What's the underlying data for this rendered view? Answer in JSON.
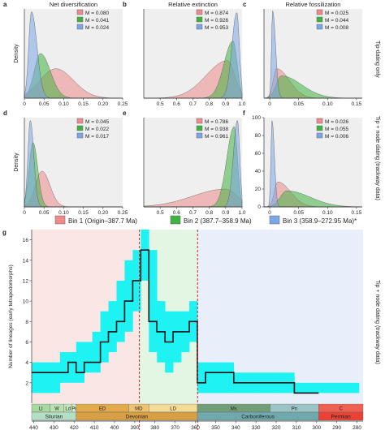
{
  "colors": {
    "bin1": "#ef8a8a",
    "bin2": "#41b341",
    "bin3": "#7aa6e6",
    "bin1_bg": "#fbe6e6",
    "bin2_bg": "#e3f5e3",
    "bin3_bg": "#e8effb",
    "band": "#1ff2f2",
    "panel_bg": "#efefef",
    "divider": "#c0262e"
  },
  "legend": {
    "bin1": "Bin 1 (Origin–387.7 Ma)",
    "bin2": "Bin 2 (387.7–358.9 Ma)",
    "bin3": "Bin 3 (358.9–272.95 Ma)*"
  },
  "row_labels": {
    "top": "Tip-dating only",
    "middle": "Tip + node dating (trackway data)",
    "bottom": "Tip + node dating (trackway data)"
  },
  "chart_data": [
    {
      "type": "area",
      "panel": "a",
      "title": "Net diversification",
      "ylabel": "Density",
      "xlim": [
        0,
        0.25
      ],
      "xticks": [
        0,
        0.05,
        0.1,
        0.15,
        0.2,
        0.25
      ],
      "xtick_labels": [
        "0",
        "0.05",
        "0.10",
        "0.15",
        "0.20",
        "0.25"
      ],
      "ylim": [
        0,
        1
      ],
      "yticks": [],
      "series": [
        {
          "name": "M = 0.080",
          "bin": "bin1",
          "peak": 0.08,
          "sd_left": 0.04,
          "sd_right": 0.045,
          "height": 0.33
        },
        {
          "name": "M = 0.041",
          "bin": "bin2",
          "peak": 0.041,
          "sd_left": 0.016,
          "sd_right": 0.025,
          "height": 0.5
        },
        {
          "name": "M = 0.024",
          "bin": "bin3",
          "peak": 0.018,
          "sd_left": 0.007,
          "sd_right": 0.014,
          "height": 0.97
        }
      ]
    },
    {
      "type": "area",
      "panel": "b",
      "title": "Relative extinction",
      "xlim": [
        0.4,
        1.0
      ],
      "xticks": [
        0.5,
        0.6,
        0.7,
        0.8,
        0.9,
        1.0
      ],
      "xtick_labels": [
        "0.5",
        "0.6",
        "0.7",
        "0.8",
        "0.9",
        "1.0"
      ],
      "ylim": [
        0,
        1
      ],
      "yticks": [],
      "series": [
        {
          "name": "M = 0.874",
          "bin": "bin1",
          "peak": 0.91,
          "sd_left": 0.13,
          "sd_right": 0.045,
          "height": 0.42
        },
        {
          "name": "M = 0.926",
          "bin": "bin2",
          "peak": 0.945,
          "sd_left": 0.055,
          "sd_right": 0.025,
          "height": 0.64
        },
        {
          "name": "M = 0.953",
          "bin": "bin3",
          "peak": 0.968,
          "sd_left": 0.03,
          "sd_right": 0.016,
          "height": 0.96
        }
      ]
    },
    {
      "type": "area",
      "panel": "c",
      "title": "Relative fossilization",
      "xlim": [
        -0.01,
        0.16
      ],
      "xticks": [
        0,
        0.05,
        0.1,
        0.15
      ],
      "xtick_labels": [
        "0",
        "0.05",
        "0.10",
        "0.15"
      ],
      "ylim": [
        0,
        1
      ],
      "yticks": [],
      "series": [
        {
          "name": "M = 0.025",
          "bin": "bin1",
          "peak": 0.012,
          "sd_left": 0.006,
          "sd_right": 0.022,
          "height": 0.33
        },
        {
          "name": "M = 0.044",
          "bin": "bin2",
          "peak": 0.02,
          "sd_left": 0.009,
          "sd_right": 0.035,
          "height": 0.25
        },
        {
          "name": "M = 0.008",
          "bin": "bin3",
          "peak": 0.005,
          "sd_left": 0.002,
          "sd_right": 0.005,
          "height": 0.98
        }
      ]
    },
    {
      "type": "area",
      "panel": "d",
      "ylabel": "Density",
      "xlim": [
        0,
        0.25
      ],
      "xticks": [
        0,
        0.05,
        0.1,
        0.15,
        0.2,
        0.25
      ],
      "xtick_labels": [
        "0",
        "0.05",
        "0.10",
        "0.15",
        "0.20",
        "0.25"
      ],
      "ylim": [
        0,
        1
      ],
      "yticks": [],
      "series": [
        {
          "name": "M = 0.045",
          "bin": "bin1",
          "peak": 0.045,
          "sd_left": 0.017,
          "sd_right": 0.02,
          "height": 0.4
        },
        {
          "name": "M = 0.022",
          "bin": "bin2",
          "peak": 0.022,
          "sd_left": 0.01,
          "sd_right": 0.012,
          "height": 0.72
        },
        {
          "name": "M = 0.017",
          "bin": "bin3",
          "peak": 0.015,
          "sd_left": 0.006,
          "sd_right": 0.009,
          "height": 0.97
        }
      ]
    },
    {
      "type": "area",
      "panel": "e",
      "xlim": [
        0.4,
        1.0
      ],
      "xticks": [
        0.5,
        0.6,
        0.7,
        0.8,
        0.9,
        1.0
      ],
      "xtick_labels": [
        "0.5",
        "0.6",
        "0.7",
        "0.8",
        "0.9",
        "1.0"
      ],
      "ylim": [
        0,
        1
      ],
      "yticks": [],
      "series": [
        {
          "name": "M = 0.786",
          "bin": "bin1",
          "peak": 0.9,
          "sd_left": 0.2,
          "sd_right": 0.07,
          "height": 0.2
        },
        {
          "name": "M = 0.938",
          "bin": "bin2",
          "peak": 0.952,
          "sd_left": 0.045,
          "sd_right": 0.02,
          "height": 0.9
        },
        {
          "name": "M = 0.961",
          "bin": "bin3",
          "peak": 0.972,
          "sd_left": 0.025,
          "sd_right": 0.014,
          "height": 0.97
        }
      ]
    },
    {
      "type": "area",
      "panel": "f",
      "xlim": [
        -0.01,
        0.16
      ],
      "xticks": [
        0,
        0.05,
        0.1,
        0.15
      ],
      "xtick_labels": [
        "0",
        "0.05",
        "0.10",
        "0.15"
      ],
      "ylim": [
        0,
        100
      ],
      "yticks": [
        0,
        20,
        40,
        60,
        80,
        100
      ],
      "series": [
        {
          "name": "M = 0.026",
          "bin": "bin1",
          "peak": 0.014,
          "sd_left": 0.006,
          "sd_right": 0.022,
          "height": 28
        },
        {
          "name": "M = 0.055",
          "bin": "bin2",
          "peak": 0.03,
          "sd_left": 0.012,
          "sd_right": 0.04,
          "height": 18
        },
        {
          "name": "M = 0.006",
          "bin": "bin3",
          "peak": 0.004,
          "sd_left": 0.002,
          "sd_right": 0.004,
          "height": 97
        }
      ]
    },
    {
      "type": "line",
      "panel": "g",
      "ylabel": "Number of lineages (early tetrapodomorphs)",
      "xlim": [
        441,
        277
      ],
      "ylim": [
        0,
        17
      ],
      "xticks": [
        440,
        430,
        420,
        410,
        400,
        390,
        380,
        370,
        360,
        350,
        340,
        330,
        320,
        310,
        300,
        290,
        280
      ],
      "yticks": [
        2,
        4,
        6,
        8,
        10,
        12,
        14,
        16
      ],
      "bin_edges": [
        387.7,
        358.9
      ],
      "steps": [
        [
          441,
          431,
          3
        ],
        [
          431,
          427,
          3
        ],
        [
          427,
          423,
          3
        ],
        [
          423,
          419,
          4
        ],
        [
          419,
          415,
          3
        ],
        [
          415,
          411,
          4
        ],
        [
          411,
          407,
          4
        ],
        [
          407,
          403,
          6
        ],
        [
          403,
          399,
          7
        ],
        [
          399,
          395,
          8
        ],
        [
          395,
          391,
          10
        ],
        [
          391,
          387,
          12
        ],
        [
          387,
          383,
          15
        ],
        [
          383,
          379,
          8
        ],
        [
          379,
          375,
          7
        ],
        [
          375,
          371,
          6
        ],
        [
          371,
          367,
          7
        ],
        [
          367,
          363,
          7
        ],
        [
          363,
          359,
          8
        ],
        [
          359,
          355,
          2
        ],
        [
          355,
          351,
          3
        ],
        [
          351,
          341,
          3
        ],
        [
          341,
          331,
          2
        ],
        [
          331,
          321,
          2
        ],
        [
          321,
          311,
          2
        ],
        [
          311,
          305,
          1
        ],
        [
          305,
          301,
          1
        ],
        [
          301,
          299,
          1
        ]
      ],
      "band": [
        [
          441,
          431,
          1,
          4
        ],
        [
          431,
          427,
          1,
          4
        ],
        [
          427,
          423,
          2,
          5
        ],
        [
          423,
          419,
          2,
          5
        ],
        [
          419,
          415,
          2,
          6
        ],
        [
          415,
          411,
          3,
          6
        ],
        [
          411,
          407,
          3,
          7
        ],
        [
          407,
          403,
          4,
          9
        ],
        [
          403,
          399,
          5,
          10
        ],
        [
          399,
          395,
          6,
          12
        ],
        [
          395,
          391,
          7,
          14
        ],
        [
          391,
          387,
          9,
          15
        ],
        [
          387,
          383,
          12,
          17
        ],
        [
          383,
          379,
          5,
          15
        ],
        [
          379,
          375,
          4,
          10
        ],
        [
          375,
          371,
          3,
          9
        ],
        [
          371,
          367,
          4,
          9
        ],
        [
          367,
          363,
          5,
          9
        ],
        [
          363,
          359,
          6,
          10
        ],
        [
          359,
          355,
          1,
          4
        ],
        [
          355,
          351,
          1,
          4
        ],
        [
          351,
          341,
          1,
          4
        ],
        [
          341,
          331,
          1,
          3
        ],
        [
          331,
          321,
          1,
          3
        ],
        [
          321,
          311,
          1,
          3
        ],
        [
          311,
          305,
          1,
          2
        ],
        [
          305,
          301,
          1,
          2
        ],
        [
          301,
          279,
          1,
          2
        ]
      ],
      "epochs": [
        {
          "label": "Ll",
          "start": 441,
          "end": 432,
          "color": "#a9d8a2"
        },
        {
          "label": "W",
          "start": 432,
          "end": 425,
          "color": "#b9e0af"
        },
        {
          "label": "Ld",
          "start": 425,
          "end": 421,
          "color": "#c3e6bb"
        },
        {
          "label": "Pr",
          "start": 421,
          "end": 419,
          "color": "#d5edcc"
        },
        {
          "label": "ED",
          "start": 419,
          "end": 393,
          "color": "#e3aa4c"
        },
        {
          "label": "MD",
          "start": 393,
          "end": 383,
          "color": "#efc270"
        },
        {
          "label": "LD",
          "start": 383,
          "end": 359,
          "color": "#f3dc98"
        },
        {
          "label": "Ms",
          "start": 359,
          "end": 323,
          "color": "#729f78"
        },
        {
          "label": "Pn",
          "start": 323,
          "end": 299,
          "color": "#9bc4c7"
        },
        {
          "label": "C",
          "start": 299,
          "end": 277,
          "color": "#ef6050"
        }
      ],
      "periods": [
        {
          "label": "Silurian",
          "start": 441,
          "end": 419,
          "color": "#b5dfc5"
        },
        {
          "label": "Devonian",
          "start": 419,
          "end": 359,
          "color": "#d9a043"
        },
        {
          "label": "Carboniferous",
          "start": 359,
          "end": 299,
          "color": "#6fa9ad"
        },
        {
          "label": "Permian",
          "start": 299,
          "end": 277,
          "color": "#ea4235"
        }
      ]
    }
  ]
}
